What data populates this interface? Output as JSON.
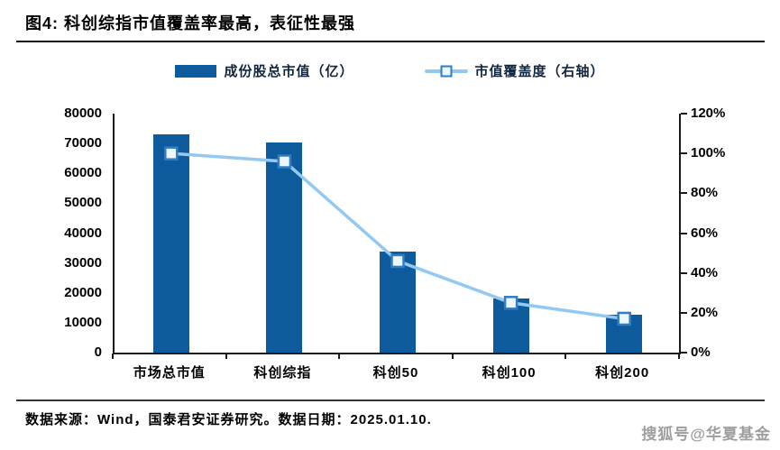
{
  "figure": {
    "title": "图4:  科创综指市值覆盖率最高，表征性最强",
    "source_note": "数据来源：Wind，国泰君安证券研究。数据日期：2025.01.10.",
    "watermark": "搜狐号@华夏基金"
  },
  "colors": {
    "bar": "#0d5a9d",
    "line": "#92c9f2",
    "marker_fill": "#edf5fd",
    "marker_border": "#2f7ec5",
    "axis": "#1a1a1a",
    "watermark": "#9e9e9e"
  },
  "chart_data": {
    "type": "combo",
    "subtype": [
      "bar",
      "line"
    ],
    "title": "图4: 科创综指市值覆盖率最高，表征性最强",
    "categories": [
      "市场总市值",
      "科创综指",
      "科创50",
      "科创100",
      "科创200"
    ],
    "series": [
      {
        "name": "成份股总市值（亿）",
        "type": "bar",
        "axis": "left",
        "values": [
          73000,
          70400,
          33700,
          18200,
          12600
        ]
      },
      {
        "name": "市值覆盖度（右轴）",
        "type": "line",
        "axis": "right",
        "unit": "%",
        "values": [
          100,
          96,
          46,
          25,
          17
        ]
      }
    ],
    "left_axis": {
      "min": 0,
      "max": 80000,
      "step": 10000
    },
    "right_axis": {
      "min": 0,
      "max": 120,
      "step": 20,
      "suffix": "%"
    },
    "grid": false,
    "legend_position": "top"
  }
}
